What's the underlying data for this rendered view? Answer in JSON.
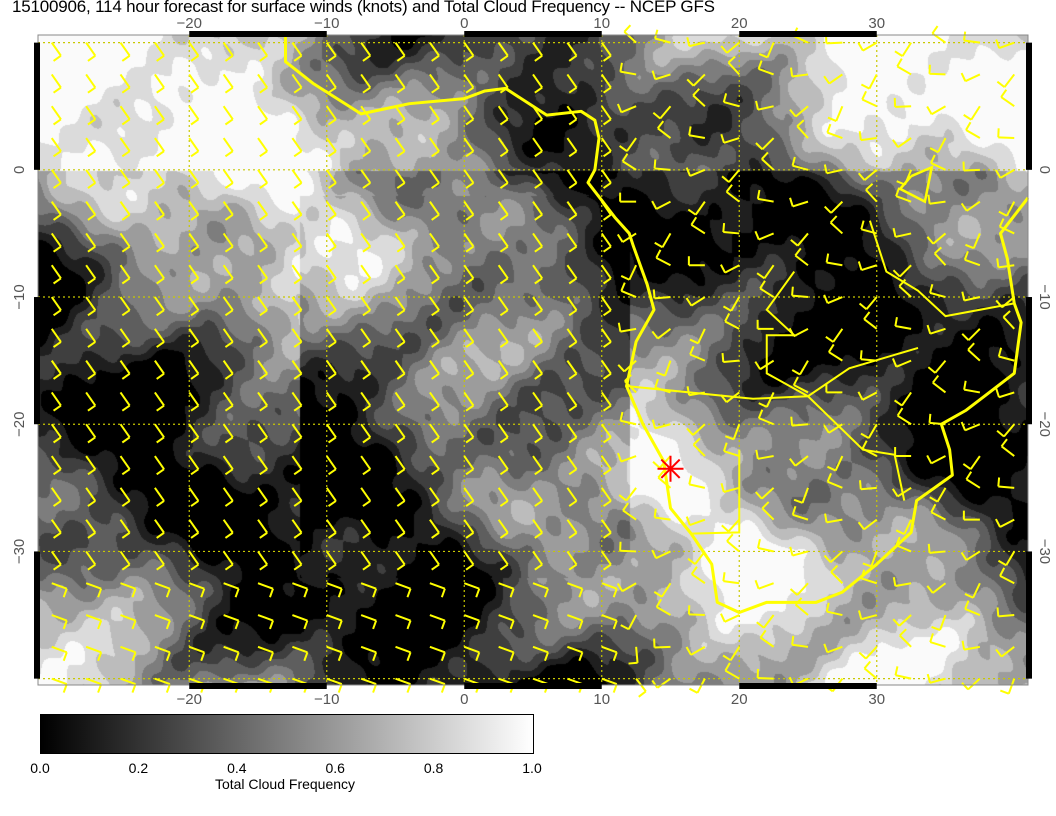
{
  "title": "15100906, 114 hour forecast for surface winds (knots) and Total Cloud Frequency -- NCEP GFS",
  "map": {
    "lon_range": [
      -31,
      41
    ],
    "lat_range": [
      -40.5,
      10.6
    ],
    "lon_ticks": [
      -20,
      -10,
      0,
      10,
      20,
      30
    ],
    "lat_ticks": [
      0,
      -10,
      -20,
      -30
    ],
    "lon_tick_labels": [
      "−20",
      "−10",
      "0",
      "10",
      "20",
      "30"
    ],
    "lat_tick_labels": [
      "0",
      "−10",
      "−20",
      "−30"
    ],
    "gridlines": true,
    "coastline_color": "#ffff00",
    "wind_barb_color": "#ffff00",
    "gridline_color": "#c8c800",
    "marker": {
      "lon": 15,
      "lat": -23.5,
      "color": "#ff0000",
      "shape": "asterisk"
    }
  },
  "colorbar": {
    "title": "Total Cloud Frequency",
    "min": 0.0,
    "max": 1.0,
    "tick_labels": [
      "0.0",
      "0.2",
      "0.4",
      "0.6",
      "0.8",
      "1.0"
    ],
    "colormap": "grayscale black-to-white"
  }
}
